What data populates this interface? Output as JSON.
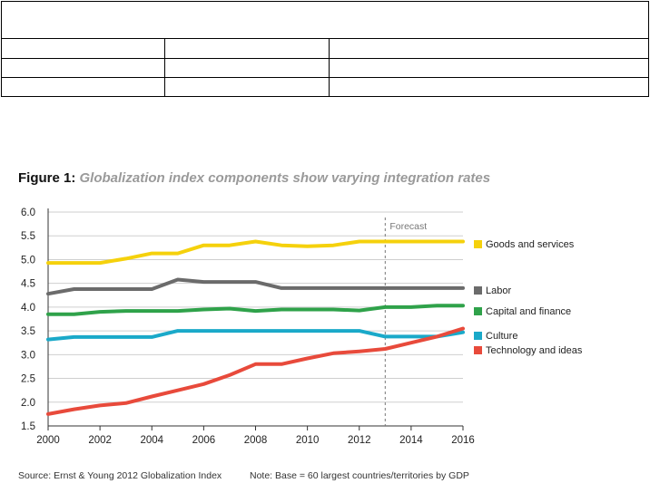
{
  "figure": {
    "number_label": "Figure 1:",
    "title": "Globalization index components show varying integration rates"
  },
  "footer": {
    "source": "Source: Ernst & Young 2012 Globalization Index",
    "note": "Note: Base = 60 largest countries/territories by GDP"
  },
  "chart_data": {
    "type": "line",
    "title": "Globalization index components show varying integration rates",
    "xlabel": "",
    "ylabel": "",
    "xlim": [
      2000,
      2016
    ],
    "ylim": [
      1.5,
      6.0
    ],
    "x_ticks": [
      "2000",
      "2002",
      "2004",
      "2006",
      "2008",
      "2010",
      "2012",
      "2014",
      "2016"
    ],
    "y_ticks": [
      "6.0",
      "5.5",
      "5.0",
      "4.5",
      "4.0",
      "3.5",
      "3.0",
      "2.5",
      "2.0",
      "1.5"
    ],
    "grid": "horizontal",
    "legend_placement": "right",
    "annotation": {
      "label": "Forecast",
      "x": 2013
    },
    "x": [
      2000,
      2001,
      2002,
      2003,
      2004,
      2005,
      2006,
      2007,
      2008,
      2009,
      2010,
      2011,
      2012,
      2013,
      2014,
      2015,
      2016
    ],
    "series": [
      {
        "name": "Goods and services",
        "color": "#f5d10c",
        "values": [
          4.93,
          4.93,
          4.93,
          5.02,
          5.13,
          5.13,
          5.3,
          5.3,
          5.38,
          5.3,
          5.28,
          5.3,
          5.38,
          5.38,
          5.38,
          5.38,
          5.38
        ]
      },
      {
        "name": "Labor",
        "color": "#6b6b6b",
        "values": [
          4.28,
          4.38,
          4.38,
          4.38,
          4.38,
          4.58,
          4.53,
          4.53,
          4.53,
          4.4,
          4.4,
          4.4,
          4.4,
          4.4,
          4.4,
          4.4,
          4.4
        ]
      },
      {
        "name": "Capital and finance",
        "color": "#2fa24a",
        "values": [
          3.85,
          3.85,
          3.9,
          3.92,
          3.92,
          3.92,
          3.95,
          3.97,
          3.92,
          3.95,
          3.95,
          3.95,
          3.93,
          4.0,
          4.0,
          4.03,
          4.03
        ]
      },
      {
        "name": "Culture",
        "color": "#1aa9c9",
        "values": [
          3.32,
          3.37,
          3.37,
          3.37,
          3.37,
          3.5,
          3.5,
          3.5,
          3.5,
          3.5,
          3.5,
          3.5,
          3.5,
          3.38,
          3.38,
          3.38,
          3.47
        ]
      },
      {
        "name": "Technology and ideas",
        "color": "#e84a3b",
        "values": [
          1.75,
          1.85,
          1.93,
          1.98,
          2.12,
          2.25,
          2.38,
          2.57,
          2.8,
          2.8,
          2.92,
          3.03,
          3.07,
          3.12,
          3.25,
          3.38,
          3.55
        ]
      }
    ]
  }
}
